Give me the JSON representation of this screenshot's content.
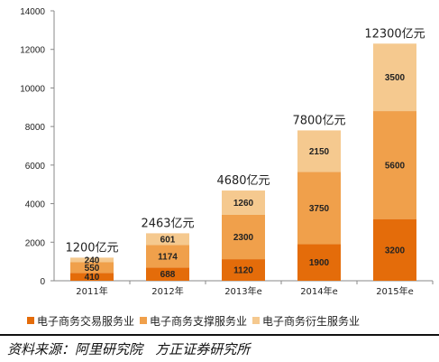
{
  "chart_data": {
    "type": "bar",
    "stacked": true,
    "categories": [
      "2011年",
      "2012年",
      "2013年e",
      "2014年e",
      "2015年e"
    ],
    "series": [
      {
        "name": "电子商务交易服务业",
        "values": [
          410,
          688,
          1120,
          1900,
          3200
        ],
        "color": "#e46c0a"
      },
      {
        "name": "电子商务支撑服务业",
        "values": [
          550,
          1174,
          2300,
          3750,
          5600
        ],
        "color": "#f0a04b"
      },
      {
        "name": "电子商务衍生服务业",
        "values": [
          240,
          601,
          1260,
          2150,
          3500
        ],
        "color": "#f5c98f"
      }
    ],
    "totals_labels": [
      "1200亿元",
      "2463亿元",
      "4680亿元",
      "7800亿元",
      "12300亿元"
    ],
    "ylim": [
      0,
      14000
    ],
    "yticks": [
      0,
      2000,
      4000,
      6000,
      8000,
      10000,
      12000,
      14000
    ],
    "grid": false,
    "legend_position": "bottom"
  },
  "source": "资料来源：阿里研究院   方正证券研究所"
}
